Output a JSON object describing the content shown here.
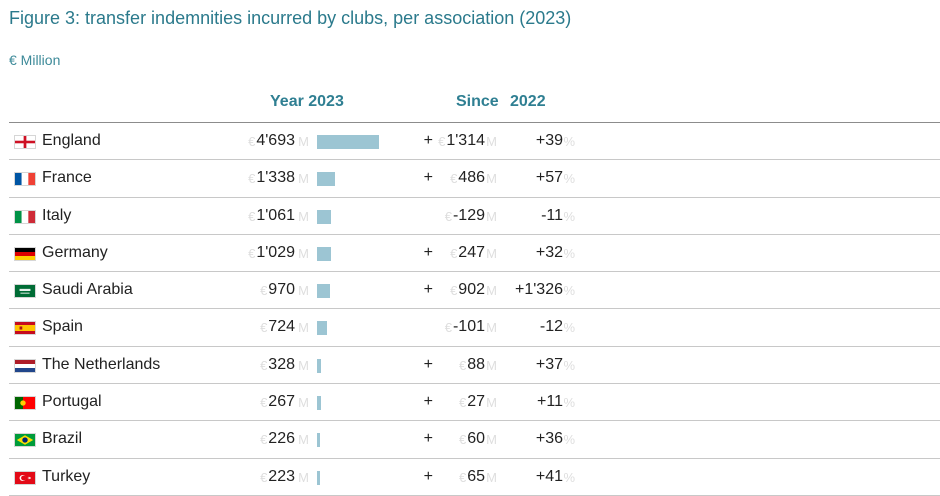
{
  "title": "Figure 3: transfer indemnities incurred by clubs, per association (2023)",
  "subtitle": "€ Million",
  "headers": {
    "year": "Year 2023",
    "since": "Since",
    "since_year": "2022"
  },
  "units": {
    "currency": "€",
    "million": "M",
    "percent": "%"
  },
  "colors": {
    "title": "#2b7a8c",
    "bar": "#9cc5d3",
    "unit_ghost": "#dedede"
  },
  "chart_data": {
    "type": "table",
    "bar_max": 4693,
    "rows": [
      {
        "country": "England",
        "flag": "england",
        "value": "4'693",
        "value_num": 4693,
        "sign": "+",
        "change": "1'314",
        "pct": "+39"
      },
      {
        "country": "France",
        "flag": "france",
        "value": "1'338",
        "value_num": 1338,
        "sign": "+",
        "change": "486",
        "pct": "+57"
      },
      {
        "country": "Italy",
        "flag": "italy",
        "value": "1'061",
        "value_num": 1061,
        "sign": "",
        "change": "-129",
        "pct": "-11"
      },
      {
        "country": "Germany",
        "flag": "germany",
        "value": "1'029",
        "value_num": 1029,
        "sign": "+",
        "change": "247",
        "pct": "+32"
      },
      {
        "country": "Saudi Arabia",
        "flag": "saudi-arabia",
        "value": "970",
        "value_num": 970,
        "sign": "+",
        "change": "902",
        "pct": "+1'326"
      },
      {
        "country": "Spain",
        "flag": "spain",
        "value": "724",
        "value_num": 724,
        "sign": "",
        "change": "-101",
        "pct": "-12"
      },
      {
        "country": "The Netherlands",
        "flag": "netherlands",
        "value": "328",
        "value_num": 328,
        "sign": "+",
        "change": "88",
        "pct": "+37"
      },
      {
        "country": "Portugal",
        "flag": "portugal",
        "value": "267",
        "value_num": 267,
        "sign": "+",
        "change": "27",
        "pct": "+11"
      },
      {
        "country": "Brazil",
        "flag": "brazil",
        "value": "226",
        "value_num": 226,
        "sign": "+",
        "change": "60",
        "pct": "+36"
      },
      {
        "country": "Turkey",
        "flag": "turkey",
        "value": "223",
        "value_num": 223,
        "sign": "+",
        "change": "65",
        "pct": "+41"
      }
    ]
  }
}
